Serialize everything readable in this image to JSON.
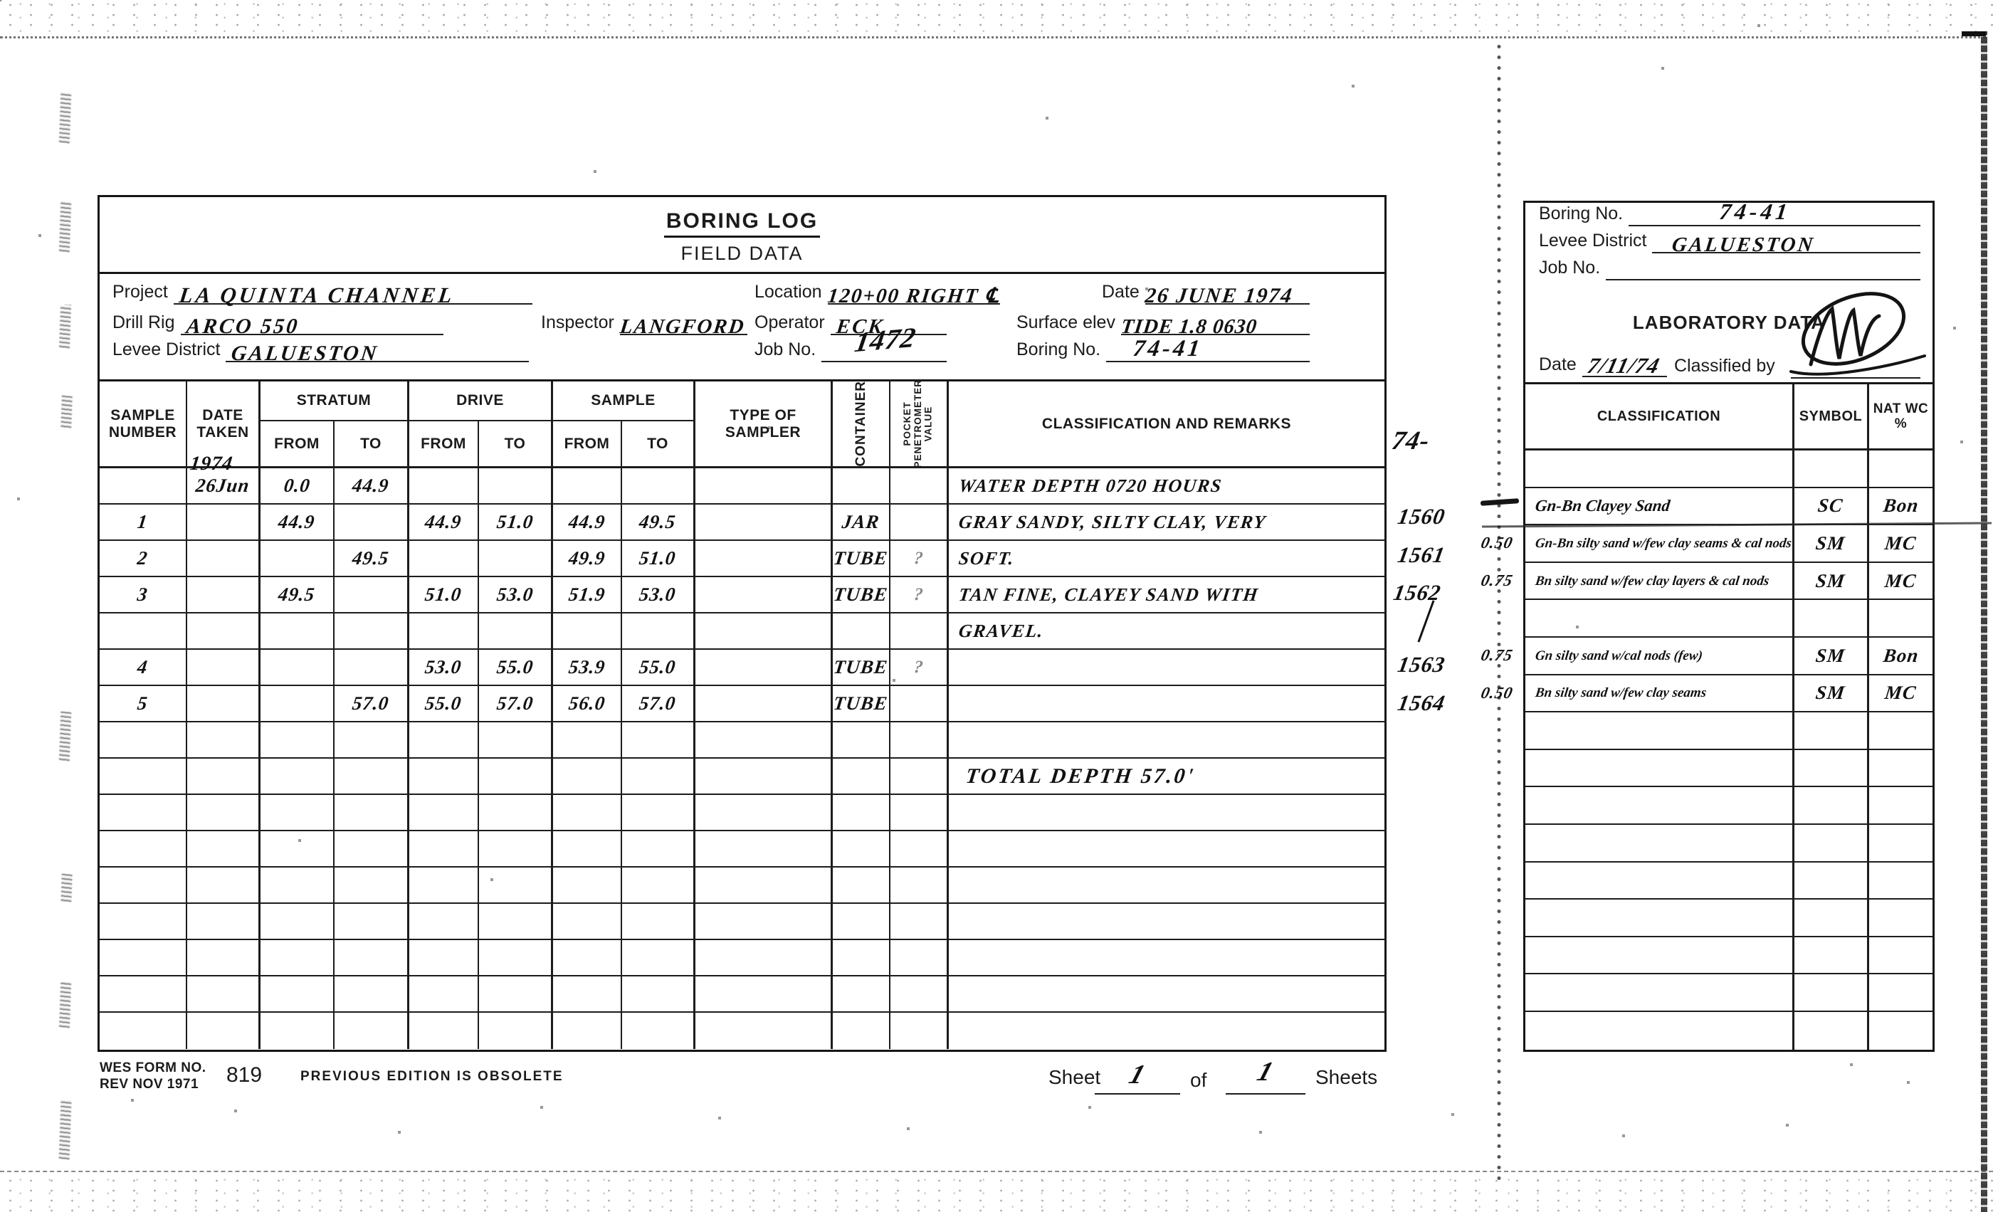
{
  "form": {
    "title": "BORING LOG",
    "subtitle": "FIELD DATA",
    "fields": {
      "project_label": "Project",
      "project_value": "LA QUINTA CHANNEL",
      "location_label": "Location",
      "location_value": "120+00  RIGHT  ℄",
      "date_label": "Date",
      "date_value": "26 JUNE 1974",
      "drill_rig_label": "Drill Rig",
      "drill_rig_value": "ARCO 550",
      "inspector_label": "Inspector",
      "inspector_value": "LANGFORD",
      "operator_label": "Operator",
      "operator_value": "ECK",
      "surface_elev_label": "Surface elev",
      "surface_elev_value": "TIDE 1.8  0630",
      "levee_district_label": "Levee District",
      "levee_district_value": "GALUESTON",
      "job_no_label": "Job No.",
      "job_no_value": "1472",
      "boring_no_label": "Boring No.",
      "boring_no_value": "74-41"
    },
    "table": {
      "headers": {
        "sample_number": "SAMPLE\nNUMBER",
        "date_taken": "DATE\nTAKEN",
        "date_taken_note": "1974",
        "stratum": "STRATUM",
        "drive": "DRIVE",
        "sample": "SAMPLE",
        "from": "FROM",
        "to": "TO",
        "type_of_sampler": "TYPE OF\nSAMPLER",
        "container": "CONTAINER",
        "pocket_penetrometer": "POCKET\nPENETROMETER\nVALUE",
        "classification": "CLASSIFICATION AND REMARKS"
      },
      "rows": [
        {
          "date": "26Jun",
          "stratum_from": "0.0",
          "stratum_to": "44.9",
          "remarks": "WATER DEPTH   0720 HOURS"
        },
        {
          "sample": "1",
          "stratum_from": "44.9",
          "drive_from": "44.9",
          "drive_to": "51.0",
          "sample_from": "44.9",
          "sample_to": "49.5",
          "container": "JAR",
          "remarks": "GRAY SANDY, SILTY CLAY, VERY"
        },
        {
          "sample": "2",
          "stratum_to": "49.5",
          "sample_from": "49.9",
          "sample_to": "51.0",
          "container": "TUBE",
          "pocket": "?",
          "remarks": "SOFT."
        },
        {
          "sample": "3",
          "stratum_from": "49.5",
          "drive_from": "51.0",
          "drive_to": "53.0",
          "sample_from": "51.9",
          "sample_to": "53.0",
          "container": "TUBE",
          "pocket": "?",
          "remarks": "TAN FINE, CLAYEY SAND WITH"
        },
        {
          "remarks": "GRAVEL."
        },
        {
          "sample": "4",
          "drive_from": "53.0",
          "drive_to": "55.0",
          "sample_from": "53.9",
          "sample_to": "55.0",
          "container": "TUBE",
          "pocket": "?"
        },
        {
          "sample": "5",
          "stratum_to": "57.0",
          "drive_from": "55.0",
          "drive_to": "57.0",
          "sample_from": "56.0",
          "sample_to": "57.0",
          "container": "TUBE"
        },
        {},
        {
          "remarks": "TOTAL DEPTH 57.0'"
        },
        {},
        {},
        {},
        {},
        {},
        {},
        {}
      ]
    },
    "margin_notes": {
      "top": "74-",
      "n1": "1560",
      "n2": "1561",
      "n3": "1562",
      "n4": "1563",
      "n5": "1564"
    },
    "footer": {
      "form_no_line1": "WES FORM NO.",
      "form_no_line2": "REV NOV 1971",
      "form_number": "819",
      "obsolete_note": "PREVIOUS EDITION IS OBSOLETE",
      "sheet_label": "Sheet",
      "sheet_value": "1",
      "of_label": "of",
      "sheets_value": "1",
      "sheets_label": "Sheets"
    }
  },
  "lab": {
    "boring_no_label": "Boring No.",
    "boring_no_value": "74-41",
    "levee_district_label": "Levee District",
    "levee_district_value": "GALUESTON",
    "job_no_label": "Job No.",
    "job_no_value": "",
    "title": "LABORATORY DATA",
    "date_label": "Date",
    "date_value": "7/11/74",
    "classified_by_label": "Classified by",
    "table": {
      "headers": {
        "classification": "CLASSIFICATION",
        "symbol": "SYMBOL",
        "nat_wc": "NAT WC\n%"
      },
      "rows": [
        {},
        {
          "classification": "Gn-Bn Clayey Sand",
          "symbol": "SC",
          "nat_wc": "Bon"
        },
        {
          "classification": "Gn-Bn silty sand w/few clay seams & cal nods",
          "symbol": "SM",
          "nat_wc": "MC",
          "margin": "0.50"
        },
        {
          "classification": "Bn silty sand w/few clay layers & cal nods",
          "symbol": "SM",
          "nat_wc": "MC",
          "margin": "0.75"
        },
        {},
        {
          "classification": "Gn silty sand w/cal nods (few)",
          "symbol": "SM",
          "nat_wc": "Bon",
          "margin": "0.75"
        },
        {
          "classification": "Bn silty sand w/few clay seams",
          "symbol": "SM",
          "nat_wc": "MC",
          "margin": "0.50"
        },
        {},
        {},
        {},
        {},
        {},
        {},
        {},
        {},
        {}
      ]
    }
  }
}
